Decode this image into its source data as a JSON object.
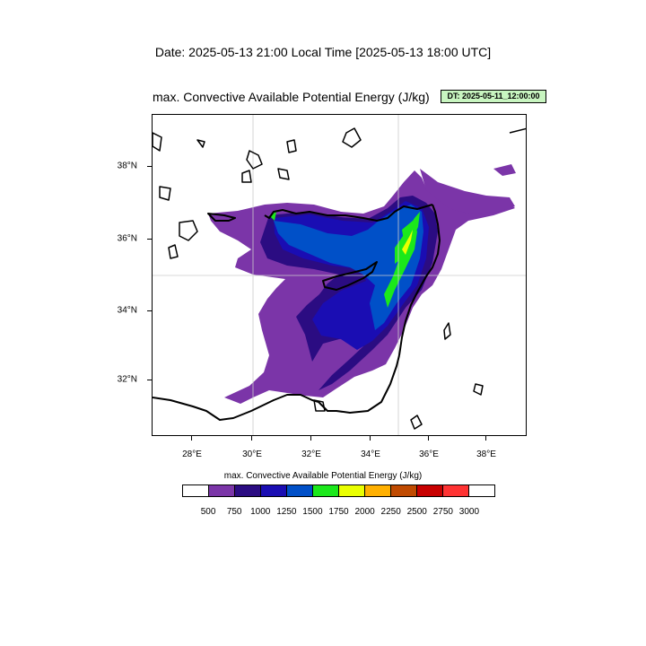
{
  "header": {
    "date_line": "Date: 2025-05-13  21:00 Local Time [2025-05-13  18:00 UTC]",
    "plot_title": "max. Convective Available Potential Energy   (J/kg)",
    "dt_badge": "DT: 2025-05-11_12:00:00"
  },
  "map": {
    "lon_range": [
      26.5,
      39.4
    ],
    "lat_range": [
      30.4,
      39.5
    ],
    "lon_ticks": [
      "28°E",
      "30°E",
      "32°E",
      "34°E",
      "36°E",
      "38°E"
    ],
    "lat_ticks": [
      "38°N",
      "36°N",
      "34°N",
      "32°N"
    ],
    "gridlines": {
      "lon": [
        30,
        35
      ],
      "lat": [
        35
      ]
    },
    "colors": {
      "coastline": "#000000",
      "gridline": "#cccccc"
    }
  },
  "colorbar": {
    "title": "max. Convective Available Potential Energy  (J/kg)",
    "levels": [
      "500",
      "750",
      "1000",
      "1250",
      "1500",
      "1750",
      "2000",
      "2250",
      "2500",
      "2750",
      "3000"
    ],
    "colors": [
      "#ffffff",
      "#7b35a8",
      "#2b0c82",
      "#1a0db3",
      "#0050c8",
      "#1be81b",
      "#eaff00",
      "#ffb000",
      "#c04a00",
      "#c80000",
      "#ff3333",
      "#ffffff"
    ]
  }
}
